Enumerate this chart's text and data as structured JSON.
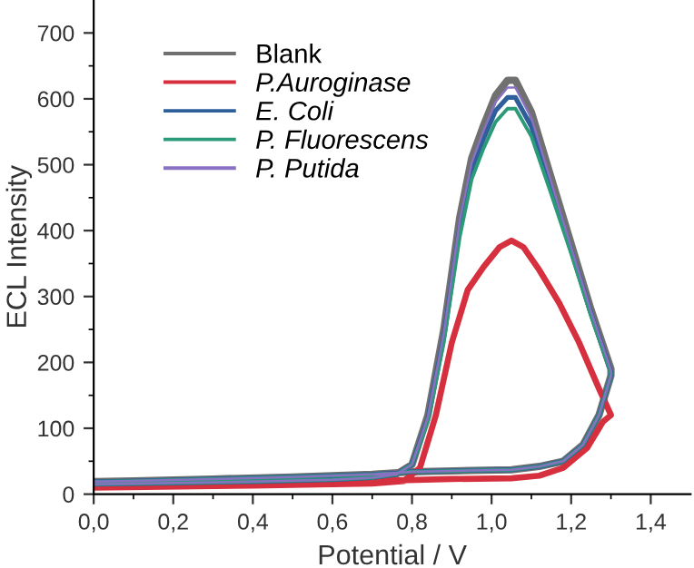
{
  "chart_data": {
    "type": "line",
    "xlabel": "Potential / V",
    "ylabel": "ECL Intensity",
    "xlim": [
      0,
      1.5
    ],
    "ylim": [
      0,
      750
    ],
    "xticks": [
      {
        "value": 0,
        "label": "0,0"
      },
      {
        "value": 0.1,
        "label": null
      },
      {
        "value": 0.2,
        "label": "0,2"
      },
      {
        "value": 0.3,
        "label": null
      },
      {
        "value": 0.4,
        "label": "0,4"
      },
      {
        "value": 0.5,
        "label": null
      },
      {
        "value": 0.6,
        "label": "0,6"
      },
      {
        "value": 0.7,
        "label": null
      },
      {
        "value": 0.8,
        "label": "0,8"
      },
      {
        "value": 0.9,
        "label": null
      },
      {
        "value": 1.0,
        "label": "1,0"
      },
      {
        "value": 1.1,
        "label": null
      },
      {
        "value": 1.2,
        "label": "1,2"
      },
      {
        "value": 1.3,
        "label": null
      },
      {
        "value": 1.4,
        "label": "1,4"
      }
    ],
    "yticks": [
      0,
      {
        "value": 50,
        "label": null
      },
      100,
      {
        "value": 150,
        "label": null
      },
      200,
      {
        "value": 250,
        "label": null
      },
      300,
      {
        "value": 350,
        "label": null
      },
      400,
      {
        "value": 450,
        "label": null
      },
      500,
      {
        "value": 550,
        "label": null
      },
      600,
      {
        "value": 650,
        "label": null
      },
      700
    ],
    "grid": false,
    "legend": "top left",
    "marker": "none",
    "line_style": "solid",
    "series": [
      {
        "name": "Blank",
        "color": "#707070",
        "x": [
          0,
          0.2,
          0.4,
          0.6,
          0.7,
          0.76,
          0.8,
          0.84,
          0.88,
          0.92,
          0.95,
          0.98,
          1.01,
          1.04,
          1.06,
          1.1,
          1.15,
          1.2,
          1.25,
          1.3,
          1.3,
          1.27,
          1.23,
          1.18,
          1.12,
          1.05,
          0.95,
          0.8,
          0.7,
          0.5,
          0.3,
          0.1,
          0
        ],
        "values": [
          15,
          17,
          19,
          22,
          25,
          30,
          45,
          120,
          250,
          420,
          510,
          560,
          605,
          628,
          628,
          580,
          480,
          380,
          280,
          190,
          180,
          120,
          75,
          50,
          42,
          37,
          36,
          34,
          30,
          26,
          23,
          20,
          19
        ]
      },
      {
        "name": "P.Auroginase",
        "color": "#d6303f",
        "x": [
          0,
          0.4,
          0.7,
          0.78,
          0.82,
          0.86,
          0.9,
          0.94,
          0.98,
          1.02,
          1.05,
          1.08,
          1.12,
          1.17,
          1.22,
          1.27,
          1.3,
          1.28,
          1.24,
          1.18,
          1.12,
          1.05,
          0.9,
          0.7,
          0.4,
          0
        ],
        "values": [
          10,
          13,
          16,
          20,
          40,
          120,
          230,
          310,
          345,
          375,
          385,
          375,
          340,
          290,
          230,
          160,
          120,
          110,
          70,
          40,
          28,
          24,
          23,
          20,
          17,
          15
        ]
      },
      {
        "name": "E. Coli",
        "color": "#2f5f9a",
        "x": [
          0,
          0.2,
          0.4,
          0.6,
          0.7,
          0.76,
          0.8,
          0.84,
          0.88,
          0.92,
          0.95,
          0.98,
          1.01,
          1.04,
          1.06,
          1.1,
          1.15,
          1.2,
          1.25,
          1.3,
          1.3,
          1.27,
          1.23,
          1.18,
          1.12,
          1.05,
          0.95,
          0.8,
          0.7,
          0.5,
          0.3,
          0.1,
          0
        ],
        "values": [
          15,
          17,
          19,
          22,
          25,
          30,
          45,
          115,
          240,
          405,
          493,
          540,
          582,
          602,
          602,
          558,
          465,
          370,
          274,
          186,
          180,
          120,
          75,
          50,
          42,
          37,
          36,
          34,
          30,
          26,
          23,
          20,
          19
        ]
      },
      {
        "name": "P. Fluorescens",
        "color": "#2a9a78",
        "x": [
          0,
          0.2,
          0.4,
          0.6,
          0.7,
          0.76,
          0.8,
          0.84,
          0.88,
          0.92,
          0.95,
          0.98,
          1.01,
          1.04,
          1.06,
          1.1,
          1.15,
          1.2,
          1.25,
          1.3,
          1.3,
          1.27,
          1.23,
          1.18,
          1.12,
          1.05,
          0.95,
          0.8,
          0.7,
          0.5,
          0.3,
          0.1,
          0
        ],
        "values": [
          15,
          17,
          19,
          22,
          25,
          30,
          45,
          110,
          230,
          390,
          478,
          525,
          565,
          585,
          585,
          543,
          455,
          365,
          270,
          184,
          180,
          120,
          75,
          50,
          42,
          37,
          36,
          34,
          30,
          26,
          23,
          20,
          19
        ]
      },
      {
        "name": "P. Putida",
        "color": "#8a70c0",
        "x": [
          0,
          0.2,
          0.4,
          0.6,
          0.7,
          0.76,
          0.8,
          0.84,
          0.88,
          0.92,
          0.95,
          0.98,
          1.01,
          1.04,
          1.06,
          1.1,
          1.15,
          1.2,
          1.25,
          1.3,
          1.3,
          1.27,
          1.23,
          1.18,
          1.12,
          1.05,
          0.95,
          0.8,
          0.7,
          0.5,
          0.3,
          0.1,
          0
        ],
        "values": [
          15,
          17,
          19,
          22,
          25,
          30,
          45,
          118,
          245,
          415,
          503,
          552,
          595,
          617,
          617,
          571,
          473,
          375,
          277,
          188,
          180,
          120,
          75,
          50,
          42,
          37,
          36,
          34,
          30,
          26,
          23,
          20,
          19
        ]
      }
    ]
  }
}
